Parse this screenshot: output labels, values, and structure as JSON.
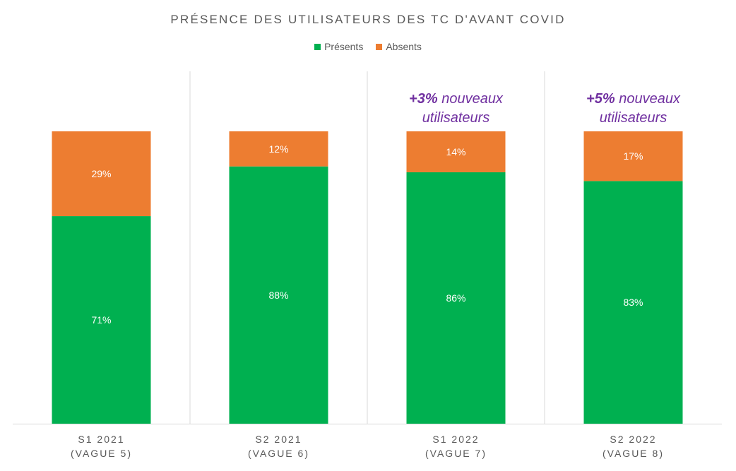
{
  "chart_data": {
    "type": "bar",
    "stacked": true,
    "percent_stacked": true,
    "title": "PRÉSENCE DES UTILISATEURS DES TC D'AVANT COVID",
    "categories": [
      [
        "S1 2021",
        "(VAGUE 5)"
      ],
      [
        "S2 2021",
        "(VAGUE 6)"
      ],
      [
        "S1 2022",
        "(VAGUE 7)"
      ],
      [
        "S2 2022",
        "(VAGUE 8)"
      ]
    ],
    "series": [
      {
        "name": "Présents",
        "color": "#00b050",
        "values": [
          71,
          88,
          86,
          83
        ]
      },
      {
        "name": "Absents",
        "color": "#ed7d31",
        "values": [
          29,
          12,
          14,
          17
        ]
      }
    ],
    "data_label_suffix": "%",
    "annotations": [
      {
        "category_index": 2,
        "bold_part": "+3%",
        "rest": " nouveaux",
        "line2": "utilisateurs"
      },
      {
        "category_index": 3,
        "bold_part": "+5%",
        "rest": " nouveaux",
        "line2": "utilisateurs"
      }
    ],
    "ylim": [
      0,
      100
    ],
    "legend_position": "top",
    "grid": false
  }
}
